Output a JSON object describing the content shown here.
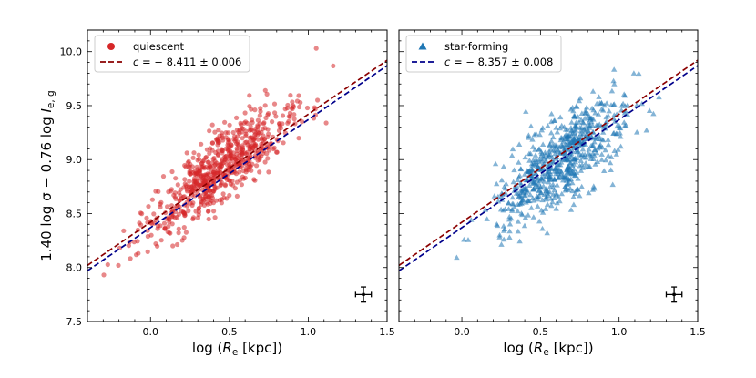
{
  "chart_data": [
    {
      "type": "scatter",
      "panel": "left",
      "xlabel": "log (R_e [kpc])",
      "ylabel": "1.40 log σ − 0.76 log I_e,g",
      "xlim": [
        -0.4,
        1.5
      ],
      "ylim": [
        7.5,
        10.2
      ],
      "xticks": [
        0.0,
        0.5,
        1.0,
        1.5
      ],
      "xtick_labels": [
        "0.0",
        "0.5",
        "1.0",
        "1.5"
      ],
      "yticks": [
        7.5,
        8.0,
        8.5,
        9.0,
        9.5,
        10.0
      ],
      "ytick_labels": [
        "7.5",
        "8.0",
        "8.5",
        "9.0",
        "9.5",
        "10.0"
      ],
      "series": [
        {
          "name": "quiescent",
          "marker": "circle",
          "color": "#d62728",
          "n_points": 700,
          "trend": {
            "slope": 1.1,
            "intercept": 8.42
          },
          "scatter": 0.16,
          "x_range": [
            -0.3,
            1.25
          ]
        }
      ],
      "fit_lines": [
        {
          "name": "c = − 8.411 ± 0.006",
          "style": "dashed",
          "color": "#8b0000",
          "slope": 1.0,
          "intercept": 8.42
        },
        {
          "name": "",
          "style": "dashed",
          "color": "#00008b",
          "slope": 1.0,
          "intercept": 8.37
        }
      ],
      "legend": {
        "position": "top-left",
        "entries": [
          {
            "label": "quiescent",
            "marker": "circle",
            "color": "#d62728"
          },
          {
            "label": "c = − 8.411 ± 0.006",
            "marker": "dashed-line",
            "color": "#8b0000"
          }
        ]
      },
      "errorbar": {
        "x": 1.35,
        "y": 7.75,
        "xerr": 0.05,
        "yerr": 0.07
      }
    },
    {
      "type": "scatter",
      "panel": "right",
      "xlabel": "log (R_e [kpc])",
      "ylabel": "",
      "xlim": [
        -0.4,
        1.5
      ],
      "ylim": [
        7.5,
        10.2
      ],
      "xticks": [
        0.0,
        0.5,
        1.0,
        1.5
      ],
      "xtick_labels": [
        "0.0",
        "0.5",
        "1.0",
        "1.5"
      ],
      "series": [
        {
          "name": "star-forming",
          "marker": "triangle",
          "color": "#1f77b4",
          "n_points": 700,
          "trend": {
            "slope": 1.05,
            "intercept": 8.32
          },
          "scatter": 0.2,
          "x_range": [
            -0.05,
            1.3
          ]
        }
      ],
      "fit_lines": [
        {
          "name": "",
          "style": "dashed",
          "color": "#8b0000",
          "slope": 1.0,
          "intercept": 8.42
        },
        {
          "name": "c = − 8.357 ± 0.008",
          "style": "dashed",
          "color": "#00008b",
          "slope": 1.0,
          "intercept": 8.37
        }
      ],
      "legend": {
        "position": "top-left",
        "entries": [
          {
            "label": "star-forming",
            "marker": "triangle",
            "color": "#1f77b4"
          },
          {
            "label": "c = − 8.357 ± 0.008",
            "marker": "dashed-line",
            "color": "#00008b"
          }
        ]
      },
      "errorbar": {
        "x": 1.35,
        "y": 7.75,
        "xerr": 0.05,
        "yerr": 0.07
      }
    }
  ]
}
